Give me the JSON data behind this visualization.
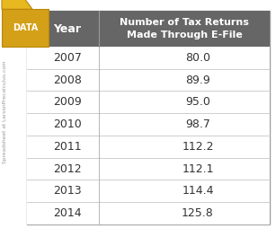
{
  "years": [
    "2007",
    "2008",
    "2009",
    "2010",
    "2011",
    "2012",
    "2013",
    "2014"
  ],
  "values": [
    "80.0",
    "89.9",
    "95.0",
    "98.7",
    "112.2",
    "112.1",
    "114.4",
    "125.8"
  ],
  "col1_header": "Year",
  "col2_header": "Number of Tax Returns\nMade Through E-File",
  "header_bg": "#666666",
  "header_fg": "#ffffff",
  "border_color": "#bbbbbb",
  "outer_border": "#999999",
  "watermark_text": "Spreadsheet at LarsonPrecalculus.com",
  "folder_body_color": "#d4a017",
  "folder_tab_color": "#e8b820",
  "data_tag_text": "DATA",
  "data_tag_bg": "#e8b820",
  "fig_bg": "#ffffff",
  "row_bg": "#ffffff",
  "text_color": "#333333"
}
